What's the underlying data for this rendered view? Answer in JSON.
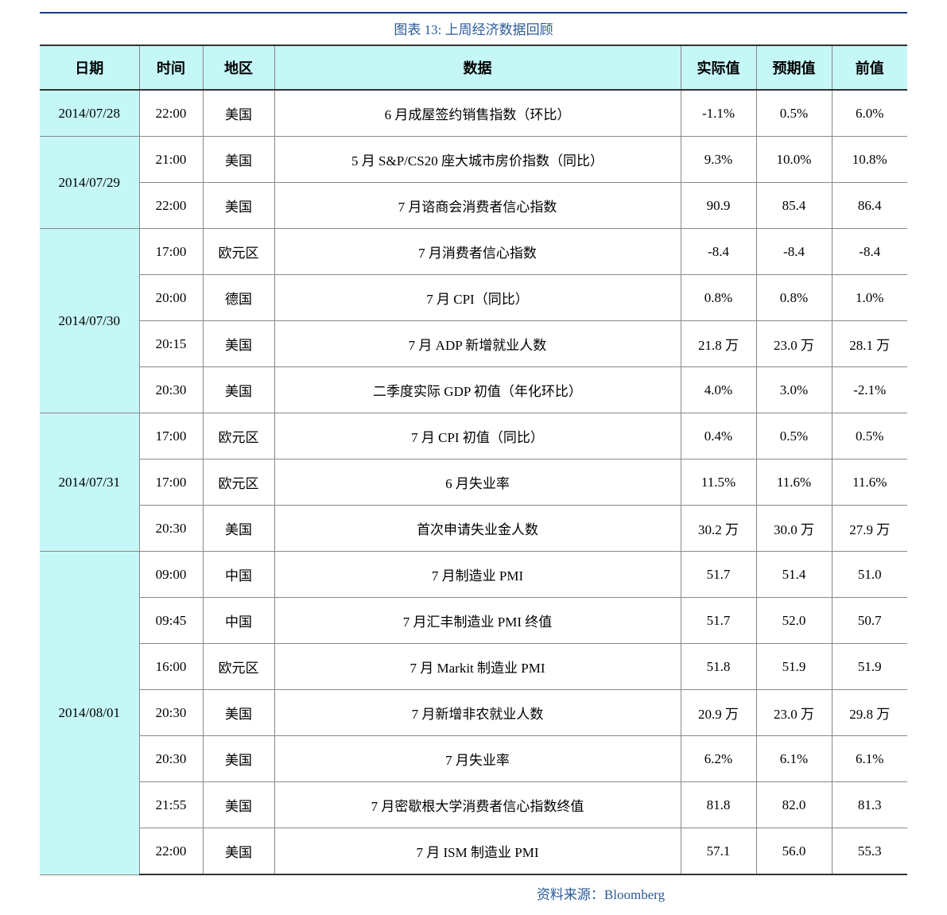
{
  "caption": "图表 13:  上周经济数据回顾",
  "source": "资料来源：Bloomberg",
  "columns": [
    "日期",
    "时间",
    "地区",
    "数据",
    "实际值",
    "预期值",
    "前值"
  ],
  "colors": {
    "header_bg": "#c5f7f7",
    "date_bg": "#c5f7f7",
    "caption_color": "#2a5a9a",
    "border_color": "#888888",
    "rule_color": "#333333"
  },
  "groups": [
    {
      "date": "2014/07/28",
      "rows": [
        {
          "time": "22:00",
          "region": "美国",
          "data": "6 月成屋签约销售指数（环比）",
          "actual": "-1.1%",
          "expect": "0.5%",
          "prev": "6.0%"
        }
      ]
    },
    {
      "date": "2014/07/29",
      "rows": [
        {
          "time": "21:00",
          "region": "美国",
          "data": "5 月 S&P/CS20 座大城市房价指数（同比）",
          "actual": "9.3%",
          "expect": "10.0%",
          "prev": "10.8%"
        },
        {
          "time": "22:00",
          "region": "美国",
          "data": "7 月谘商会消费者信心指数",
          "actual": "90.9",
          "expect": "85.4",
          "prev": "86.4"
        }
      ]
    },
    {
      "date": "2014/07/30",
      "rows": [
        {
          "time": "17:00",
          "region": "欧元区",
          "data": "7 月消费者信心指数",
          "actual": "-8.4",
          "expect": "-8.4",
          "prev": "-8.4"
        },
        {
          "time": "20:00",
          "region": "德国",
          "data": "7 月 CPI（同比）",
          "actual": "0.8%",
          "expect": "0.8%",
          "prev": "1.0%"
        },
        {
          "time": "20:15",
          "region": "美国",
          "data": "7 月 ADP 新增就业人数",
          "actual": "21.8 万",
          "expect": "23.0 万",
          "prev": "28.1 万"
        },
        {
          "time": "20:30",
          "region": "美国",
          "data": "二季度实际 GDP 初值（年化环比）",
          "actual": "4.0%",
          "expect": "3.0%",
          "prev": "-2.1%"
        }
      ]
    },
    {
      "date": "2014/07/31",
      "rows": [
        {
          "time": "17:00",
          "region": "欧元区",
          "data": "7 月 CPI 初值（同比）",
          "actual": "0.4%",
          "expect": "0.5%",
          "prev": "0.5%"
        },
        {
          "time": "17:00",
          "region": "欧元区",
          "data": "6 月失业率",
          "actual": "11.5%",
          "expect": "11.6%",
          "prev": "11.6%"
        },
        {
          "time": "20:30",
          "region": "美国",
          "data": "首次申请失业金人数",
          "actual": "30.2 万",
          "expect": "30.0 万",
          "prev": "27.9 万"
        }
      ]
    },
    {
      "date": "2014/08/01",
      "rows": [
        {
          "time": "09:00",
          "region": "中国",
          "data": "7 月制造业 PMI",
          "actual": "51.7",
          "expect": "51.4",
          "prev": "51.0"
        },
        {
          "time": "09:45",
          "region": "中国",
          "data": "7 月汇丰制造业 PMI 终值",
          "actual": "51.7",
          "expect": "52.0",
          "prev": "50.7"
        },
        {
          "time": "16:00",
          "region": "欧元区",
          "data": "7 月 Markit 制造业 PMI",
          "actual": "51.8",
          "expect": "51.9",
          "prev": "51.9"
        },
        {
          "time": "20:30",
          "region": "美国",
          "data": "7 月新增非农就业人数",
          "actual": "20.9 万",
          "expect": "23.0 万",
          "prev": "29.8 万"
        },
        {
          "time": "20:30",
          "region": "美国",
          "data": "7 月失业率",
          "actual": "6.2%",
          "expect": "6.1%",
          "prev": "6.1%"
        },
        {
          "time": "21:55",
          "region": "美国",
          "data": "7 月密歇根大学消费者信心指数终值",
          "actual": "81.8",
          "expect": "82.0",
          "prev": "81.3"
        },
        {
          "time": "22:00",
          "region": "美国",
          "data": "7 月 ISM 制造业 PMI",
          "actual": "57.1",
          "expect": "56.0",
          "prev": "55.3"
        }
      ]
    }
  ]
}
